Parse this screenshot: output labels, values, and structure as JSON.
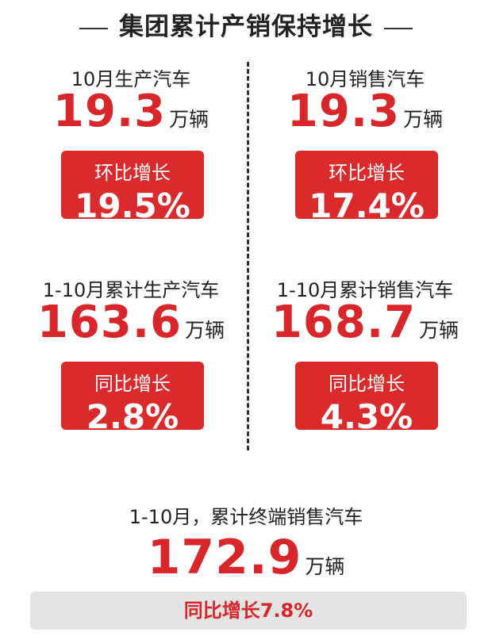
{
  "title": "集团累计产销保持增长",
  "blocks": [
    {
      "label": "10月生产汽车",
      "value": "19.3",
      "unit": "万辆",
      "badge_label": "环比增长",
      "badge_value": "19.5%"
    },
    {
      "label": "10月销售汽车",
      "value": "19.3",
      "unit": "万辆",
      "badge_label": "环比增长",
      "badge_value": "17.4%"
    },
    {
      "label": "1-10月累计生产汽车",
      "value": "163.6",
      "unit": "万辆",
      "badge_label": "同比增长",
      "badge_value": "2.8%"
    },
    {
      "label": "1-10月累计销售汽车",
      "value": "168.7",
      "unit": "万辆",
      "badge_label": "同比增长",
      "badge_value": "4.3%"
    }
  ],
  "summary": {
    "label": "1-10月，累计终端销售汽车",
    "value": "172.9",
    "unit": "万辆",
    "badge": "同比增长7.8%"
  }
}
